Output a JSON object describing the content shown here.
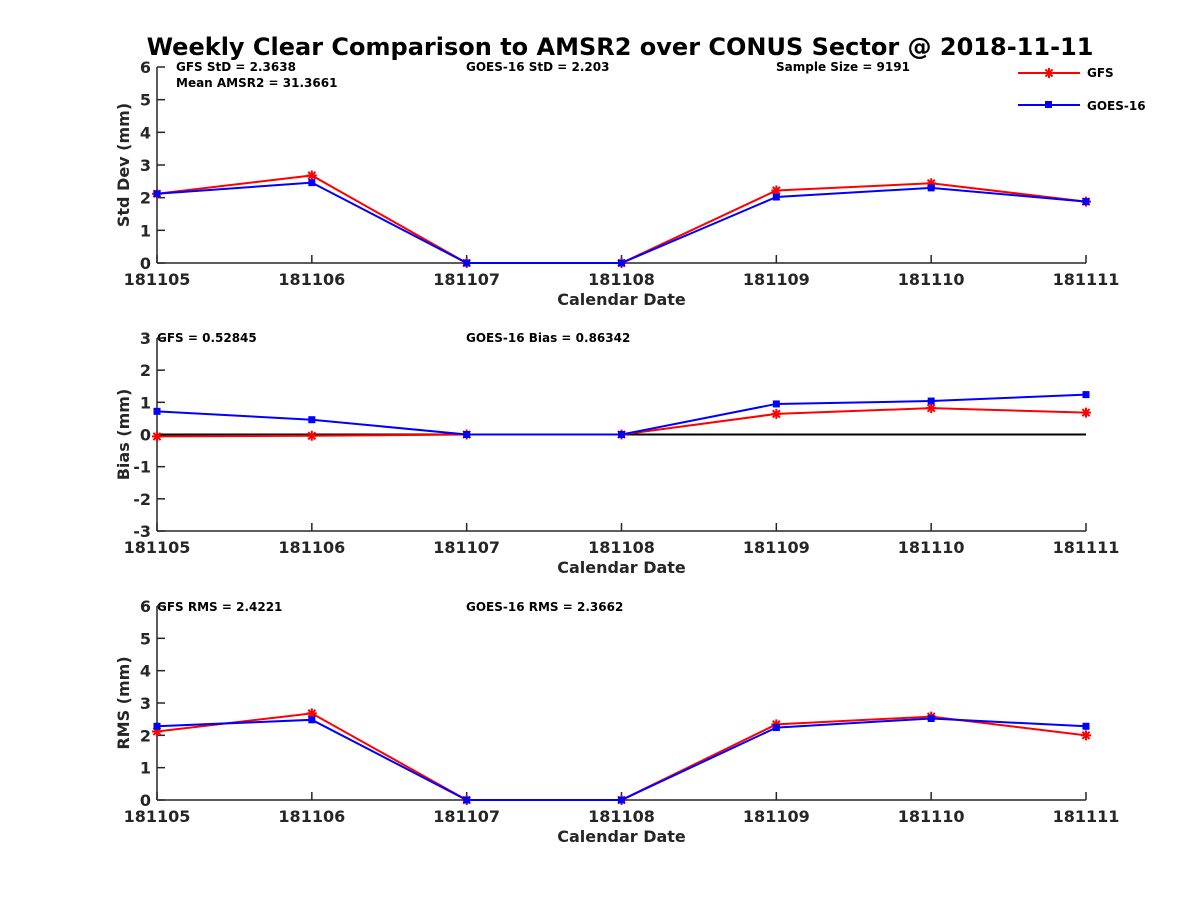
{
  "figure": {
    "title": "Weekly Clear Comparison to AMSR2 over CONUS Sector @ 2018-11-11"
  },
  "legend": {
    "placement": "top-right",
    "entries": [
      {
        "label": "GFS",
        "color": "#ff0000",
        "marker": "asterisk"
      },
      {
        "label": "GOES-16",
        "color": "#0000ff",
        "marker": "square"
      }
    ]
  },
  "annotations": {
    "std": [
      "GFS StD = 2.3638",
      "Mean AMSR2 = 31.3661",
      "GOES-16 StD = 2.203",
      "Sample Size = 9191"
    ],
    "bias": [
      "GFS = 0.52845",
      "GOES-16 Bias  = 0.86342"
    ],
    "rms": [
      "GFS RMS = 2.4221",
      "GOES-16 RMS = 2.3662"
    ]
  },
  "chart_data": [
    {
      "type": "line",
      "title": "Weekly Clear Comparison to AMSR2 over CONUS Sector @ 2018-11-11",
      "xlabel": "Calendar Date",
      "ylabel": "Std Dev (mm)",
      "x": [
        "181105",
        "181106",
        "181107",
        "181108",
        "181109",
        "181110",
        "181111"
      ],
      "ylim": [
        0,
        6
      ],
      "yticks": [
        "0",
        "1",
        "2",
        "3",
        "4",
        "5",
        "6"
      ],
      "grid": false,
      "series": [
        {
          "name": "GFS",
          "color": "#ff0000",
          "marker": "asterisk",
          "values": [
            2.12,
            2.68,
            0.0,
            0.0,
            2.22,
            2.44,
            1.88
          ]
        },
        {
          "name": "GOES-16",
          "color": "#0000ff",
          "marker": "square",
          "values": [
            2.12,
            2.46,
            0.0,
            0.0,
            2.02,
            2.3,
            1.88
          ]
        }
      ]
    },
    {
      "type": "line",
      "xlabel": "Calendar Date",
      "ylabel": "Bias (mm)",
      "x": [
        "181105",
        "181106",
        "181107",
        "181108",
        "181109",
        "181110",
        "181111"
      ],
      "ylim": [
        -3,
        3
      ],
      "yticks": [
        "-3",
        "-2",
        "-1",
        "0",
        "1",
        "2",
        "3"
      ],
      "grid": false,
      "zero_line": true,
      "series": [
        {
          "name": "GFS",
          "color": "#ff0000",
          "marker": "asterisk",
          "values": [
            -0.06,
            -0.04,
            0.0,
            0.0,
            0.64,
            0.82,
            0.68
          ]
        },
        {
          "name": "GOES-16",
          "color": "#0000ff",
          "marker": "square",
          "values": [
            0.72,
            0.46,
            0.0,
            0.0,
            0.95,
            1.04,
            1.24
          ]
        }
      ]
    },
    {
      "type": "line",
      "xlabel": "Calendar Date",
      "ylabel": "RMS (mm)",
      "x": [
        "181105",
        "181106",
        "181107",
        "181108",
        "181109",
        "181110",
        "181111"
      ],
      "ylim": [
        0,
        6
      ],
      "yticks": [
        "0",
        "1",
        "2",
        "3",
        "4",
        "5",
        "6"
      ],
      "grid": false,
      "series": [
        {
          "name": "GFS",
          "color": "#ff0000",
          "marker": "asterisk",
          "values": [
            2.12,
            2.68,
            0.0,
            0.0,
            2.34,
            2.58,
            2.0
          ]
        },
        {
          "name": "GOES-16",
          "color": "#0000ff",
          "marker": "square",
          "values": [
            2.28,
            2.48,
            0.0,
            0.0,
            2.24,
            2.52,
            2.28
          ]
        }
      ]
    }
  ]
}
